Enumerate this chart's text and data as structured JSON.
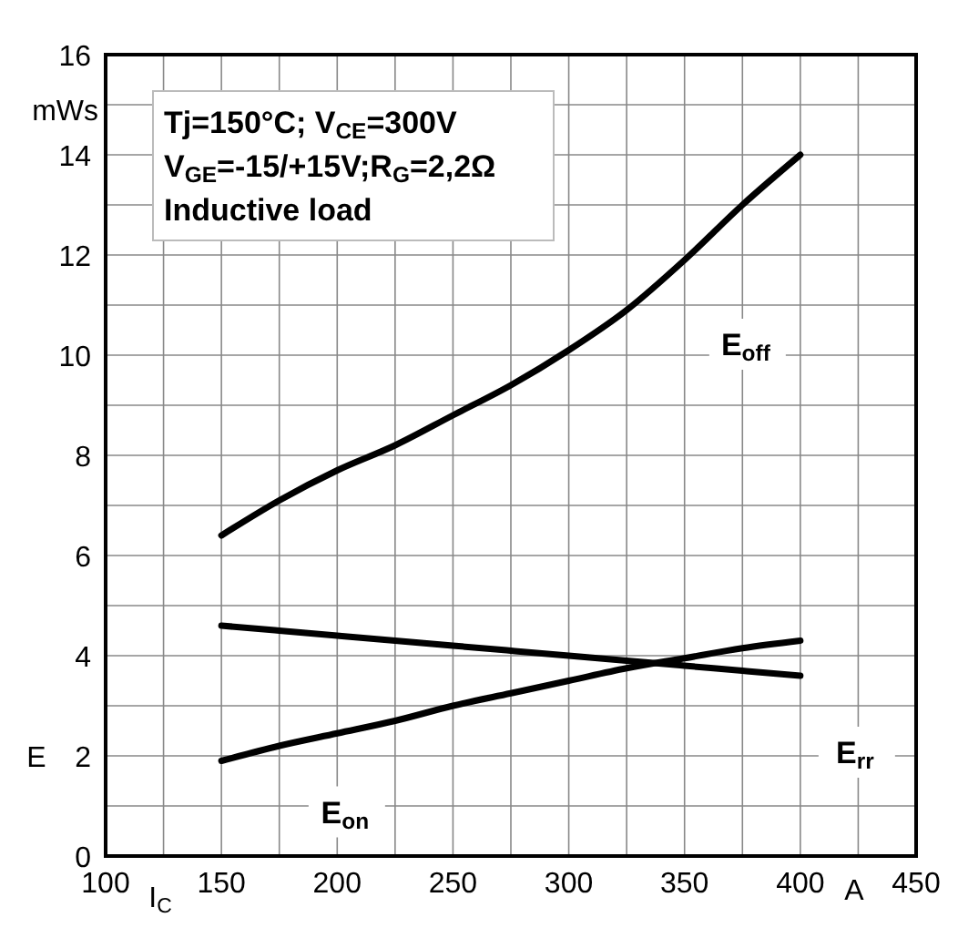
{
  "chart_data": {
    "type": "line",
    "ylabel": "E",
    "xlabel": "I$_{C}$",
    "annotations": [
      "Tj=150°C; V$_{CE}$=300V",
      "V$_{GE}$=-15/+15V;R$_{G}$=2,2Ω",
      "Inductive load",
      "mWs",
      "A"
    ],
    "x": [
      150,
      175,
      200,
      225,
      250,
      275,
      300,
      325,
      350,
      375,
      400
    ],
    "series": [
      {
        "name": "E$_{off}$",
        "color": "#000000",
        "values": [
          6.4,
          7.1,
          7.7,
          8.2,
          8.8,
          9.4,
          10.1,
          10.9,
          11.9,
          13.0,
          14.0
        ]
      },
      {
        "name": "E$_{rr}$",
        "color": "#000000",
        "values": [
          4.6,
          4.5,
          4.4,
          4.3,
          4.2,
          4.1,
          4.0,
          3.9,
          3.8,
          3.7,
          3.6
        ]
      },
      {
        "name": "E$_{on}$",
        "color": "#000000",
        "values": [
          1.9,
          2.2,
          2.45,
          2.7,
          3.0,
          3.25,
          3.5,
          3.75,
          3.95,
          4.15,
          4.3
        ]
      }
    ],
    "xlim": [
      100,
      450
    ],
    "ylim": [
      0,
      16
    ],
    "xticks": [
      100,
      {
        "value": 125,
        "label": null
      },
      150,
      {
        "value": 175,
        "label": null
      },
      200,
      {
        "value": 225,
        "label": null
      },
      250,
      {
        "value": 275,
        "label": null
      },
      300,
      {
        "value": 325,
        "label": null
      },
      350,
      {
        "value": 375,
        "label": null
      },
      400,
      {
        "value": 425,
        "label": null
      },
      450
    ],
    "yticks": [
      0,
      {
        "value": 1,
        "label": null
      },
      2,
      {
        "value": 3,
        "label": null
      },
      4,
      {
        "value": 5,
        "label": null
      },
      6,
      {
        "value": 7,
        "label": null
      },
      8,
      {
        "value": 9,
        "label": null
      },
      10,
      {
        "value": 11,
        "label": null
      },
      12,
      {
        "value": 13,
        "label": null
      },
      14,
      {
        "value": 15,
        "label": null
      },
      16
    ],
    "grid": true,
    "marker": "none",
    "line_style": "solid"
  }
}
